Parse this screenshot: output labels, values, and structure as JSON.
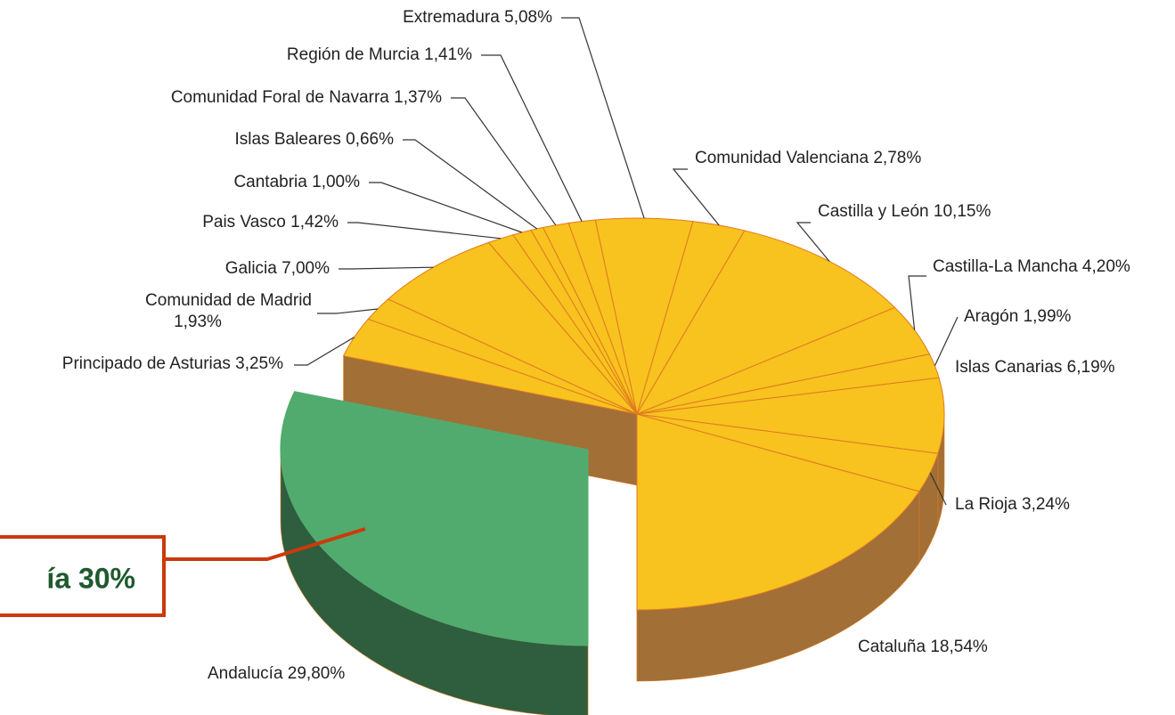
{
  "chart_data": {
    "type": "pie3d",
    "categories": [
      "Andalucía",
      "Cataluña",
      "La Rioja",
      "Islas Canarias",
      "Aragón",
      "Castilla-La Mancha",
      "Castilla y León",
      "Comunidad Valenciana",
      "Extremadura",
      "Región de Murcia",
      "Comunidad Foral de Navarra",
      "Islas Baleares",
      "Cantabria",
      "Pais Vasco",
      "Galicia",
      "Comunidad de Madrid",
      "Principado de Asturias"
    ],
    "values": [
      29.8,
      18.54,
      3.24,
      6.19,
      1.99,
      4.2,
      10.15,
      2.78,
      5.08,
      1.41,
      1.37,
      0.66,
      1.0,
      1.42,
      7.0,
      1.93,
      3.25
    ],
    "value_labels": [
      "29,80%",
      "18,54%",
      "3,24%",
      "6,19%",
      "1,99%",
      "4,20%",
      "10,15%",
      "2,78%",
      "5,08%",
      "1,41%",
      "1,37%",
      "0,66%",
      "1,00%",
      "1,42%",
      "7,00%",
      "1,93%",
      "3,25%"
    ],
    "colors": [
      "#52ab6e",
      "#f8c21f",
      "#f8c21f",
      "#f8c21f",
      "#f8c21f",
      "#f8c21f",
      "#f8c21f",
      "#f8c21f",
      "#f8c21f",
      "#f8c21f",
      "#f8c21f",
      "#f8c21f",
      "#f8c21f",
      "#f8c21f",
      "#f8c21f",
      "#f8c21f",
      "#f8c21f"
    ],
    "side_colors": [
      "#2e5e3e",
      "#a26f36",
      "#a26f36",
      "#a26f36",
      "#a26f36",
      "#a26f36",
      "#a26f36",
      "#a26f36",
      "#a26f36",
      "#a26f36",
      "#a26f36",
      "#a26f36",
      "#a26f36",
      "#a26f36",
      "#a26f36",
      "#a26f36",
      "#a26f36"
    ],
    "annotation": "ía 30%"
  }
}
